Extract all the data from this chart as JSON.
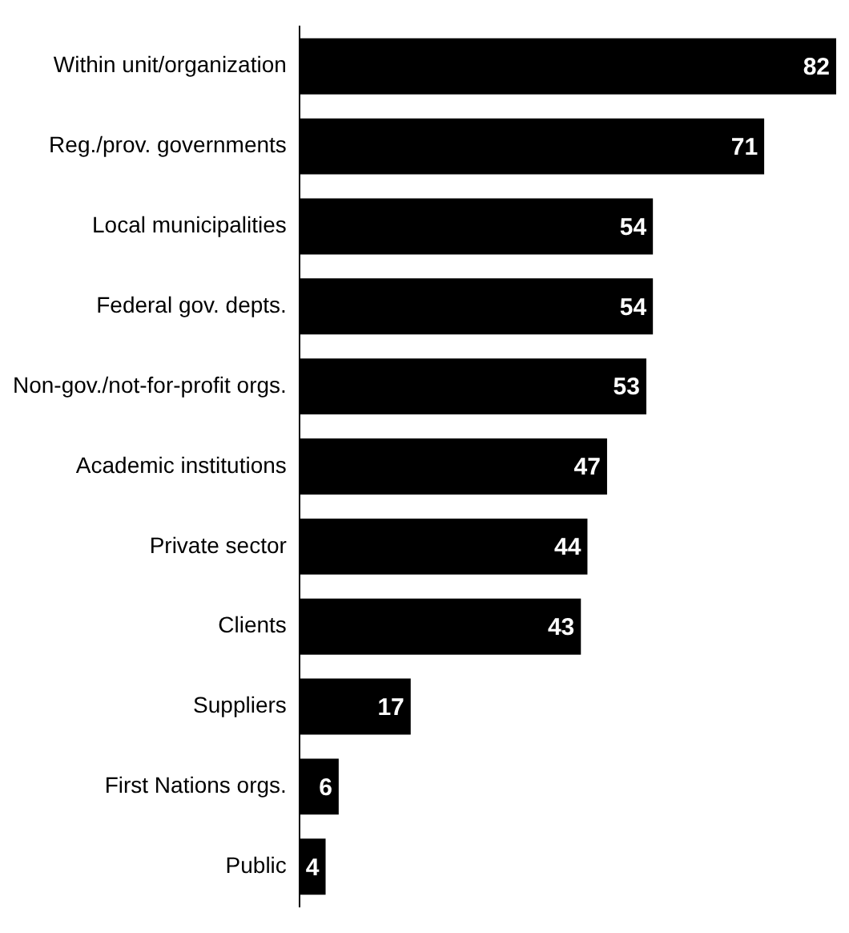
{
  "chart_data": {
    "type": "bar",
    "orientation": "horizontal",
    "categories": [
      "Within unit/organization",
      "Reg./prov. governments",
      "Local municipalities",
      "Federal gov. depts.",
      "Non-gov./not-for-profit orgs.",
      "Academic institutions",
      "Private sector",
      "Clients",
      "Suppliers",
      "First Nations orgs.",
      "Public"
    ],
    "values": [
      82,
      71,
      54,
      54,
      53,
      47,
      44,
      43,
      17,
      6,
      4
    ],
    "color": "#000000",
    "xlim": [
      0,
      82
    ],
    "data_labels": true,
    "tick_labels": "y",
    "legend": false
  }
}
